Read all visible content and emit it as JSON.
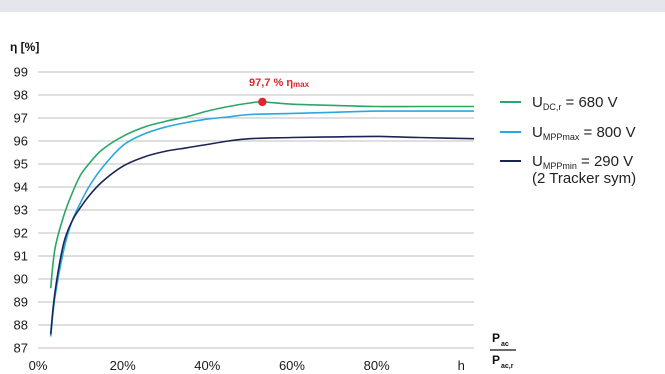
{
  "chart_data": {
    "type": "line",
    "ylabel": "η [%]",
    "ylim": [
      87,
      99
    ],
    "xlim": [
      0,
      1.03
    ],
    "y_ticks": [
      "87",
      "88",
      "89",
      "90",
      "91",
      "92",
      "93",
      "94",
      "95",
      "96",
      "97",
      "98",
      "99"
    ],
    "x_ticks": [
      "0%",
      "20%",
      "40%",
      "60%",
      "80%",
      "h"
    ],
    "x_axis_label": {
      "main": "P",
      "numerator_sub": "ac",
      "denominator_sub": "ac,r"
    },
    "grid": true,
    "legend_position": "right",
    "annotation": {
      "text": "97,7 % ",
      "symbol": "η",
      "sub": "max",
      "x": 0.53,
      "y": 97.7,
      "color": "#e0262c"
    },
    "series": [
      {
        "name": "U",
        "sub": "DC,r",
        "value": " = 680 V",
        "note": "",
        "color": "#2aa767",
        "x": [
          0.03,
          0.04,
          0.06,
          0.08,
          0.1,
          0.12,
          0.15,
          0.2,
          0.25,
          0.3,
          0.35,
          0.4,
          0.45,
          0.5,
          0.53,
          0.6,
          0.7,
          0.8,
          0.9,
          1.03
        ],
        "y": [
          89.6,
          91.3,
          92.7,
          93.7,
          94.5,
          95.0,
          95.6,
          96.2,
          96.6,
          96.85,
          97.05,
          97.3,
          97.5,
          97.65,
          97.7,
          97.6,
          97.55,
          97.5,
          97.5,
          97.5
        ]
      },
      {
        "name": "U",
        "sub": "MPPmax",
        "value": " = 800 V",
        "note": "",
        "color": "#29a8e0",
        "x": [
          0.03,
          0.04,
          0.06,
          0.08,
          0.1,
          0.12,
          0.15,
          0.2,
          0.25,
          0.3,
          0.35,
          0.4,
          0.45,
          0.5,
          0.6,
          0.7,
          0.8,
          0.9,
          1.03
        ],
        "y": [
          87.5,
          89.2,
          91.2,
          92.5,
          93.3,
          94.0,
          94.8,
          95.8,
          96.3,
          96.6,
          96.8,
          96.95,
          97.05,
          97.15,
          97.2,
          97.25,
          97.3,
          97.3,
          97.3
        ]
      },
      {
        "name": "U",
        "sub": "MPPmin",
        "value": " = 290 V",
        "note": "(2 Tracker sym)",
        "color": "#1b2555",
        "x": [
          0.03,
          0.04,
          0.06,
          0.08,
          0.1,
          0.12,
          0.15,
          0.2,
          0.25,
          0.3,
          0.35,
          0.4,
          0.45,
          0.5,
          0.6,
          0.7,
          0.8,
          0.9,
          1.03
        ],
        "y": [
          87.6,
          89.4,
          91.5,
          92.5,
          93.1,
          93.6,
          94.2,
          94.9,
          95.3,
          95.55,
          95.7,
          95.85,
          96.0,
          96.1,
          96.15,
          96.18,
          96.2,
          96.15,
          96.1
        ]
      }
    ]
  }
}
